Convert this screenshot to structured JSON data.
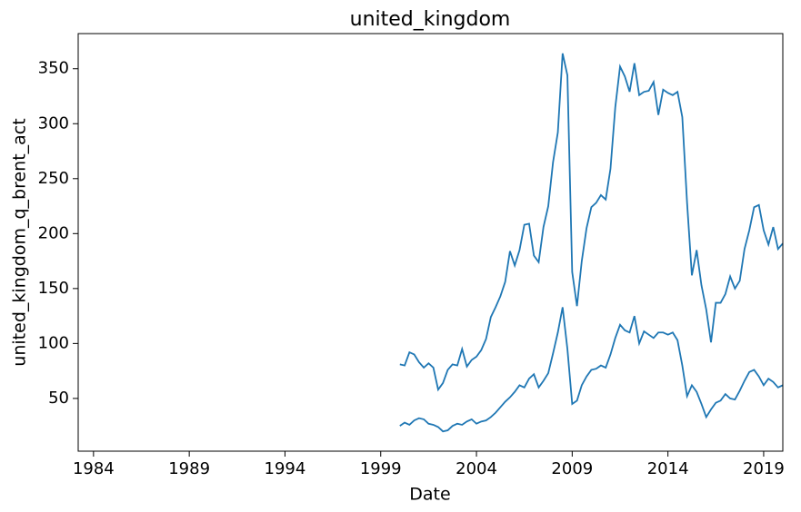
{
  "chart_data": {
    "type": "line",
    "title": "united_kingdom",
    "x_label": "Date",
    "y_label": "united_kingdom_q_brent_act",
    "x": [
      2000.0,
      2000.25,
      2000.5,
      2000.75,
      2001.0,
      2001.25,
      2001.5,
      2001.75,
      2002.0,
      2002.25,
      2002.5,
      2002.75,
      2003.0,
      2003.25,
      2003.5,
      2003.75,
      2004.0,
      2004.25,
      2004.5,
      2004.75,
      2005.0,
      2005.25,
      2005.5,
      2005.75,
      2006.0,
      2006.25,
      2006.5,
      2006.75,
      2007.0,
      2007.25,
      2007.5,
      2007.75,
      2008.0,
      2008.25,
      2008.5,
      2008.75,
      2009.0,
      2009.25,
      2009.5,
      2009.75,
      2010.0,
      2010.25,
      2010.5,
      2010.75,
      2011.0,
      2011.25,
      2011.5,
      2011.75,
      2012.0,
      2012.25,
      2012.5,
      2012.75,
      2013.0,
      2013.25,
      2013.5,
      2013.75,
      2014.0,
      2014.25,
      2014.5,
      2014.75,
      2015.0,
      2015.25,
      2015.5,
      2015.75,
      2016.0,
      2016.25,
      2016.5,
      2016.75,
      2017.0,
      2017.25,
      2017.5,
      2017.75,
      2018.0,
      2018.25,
      2018.5,
      2018.75,
      2019.0,
      2019.25,
      2019.5,
      2019.75,
      2020.0
    ],
    "series": [
      {
        "color": "#1f77b4",
        "values": [
          81,
          80,
          92,
          90,
          83,
          78,
          82,
          78,
          58,
          64,
          76,
          81,
          80,
          95,
          79,
          85,
          88,
          94,
          104,
          124,
          133,
          143,
          156,
          184,
          171,
          185,
          208,
          209,
          180,
          174,
          206,
          225,
          265,
          292,
          364,
          344,
          165,
          134,
          175,
          205,
          224,
          228,
          235,
          231,
          259,
          315,
          352,
          343,
          329,
          355,
          326,
          329,
          330,
          338,
          308,
          331,
          328,
          326,
          329,
          306,
          228,
          162,
          185,
          153,
          131,
          101,
          137,
          137,
          145,
          161,
          150,
          157,
          186,
          203,
          224,
          226,
          203,
          190,
          206,
          186,
          191
        ]
      },
      {
        "color": "#1f77b4",
        "values": [
          25,
          28,
          26,
          30,
          32,
          31,
          27,
          26,
          24,
          20,
          21,
          25,
          27,
          26,
          29,
          31,
          27,
          29,
          30,
          33,
          37,
          42,
          47,
          51,
          56,
          62,
          60,
          68,
          72,
          60,
          66,
          73,
          91,
          110,
          133,
          95,
          45,
          48,
          62,
          70,
          76,
          77,
          80,
          78,
          90,
          105,
          117,
          112,
          110,
          125,
          100,
          111,
          108,
          105,
          110,
          110,
          108,
          110,
          103,
          80,
          52,
          62,
          56,
          45,
          33,
          40,
          46,
          48,
          54,
          50,
          49,
          57,
          66,
          74,
          76,
          70,
          62,
          68,
          65,
          60,
          62
        ]
      }
    ],
    "xlim": [
      1983.2,
      2020.0
    ],
    "xticks": [
      1984,
      1989,
      1994,
      1999,
      2004,
      2009,
      2014,
      2019
    ],
    "ylim": [
      2,
      382
    ],
    "yticks": [
      50,
      100,
      150,
      200,
      250,
      300,
      350
    ]
  }
}
